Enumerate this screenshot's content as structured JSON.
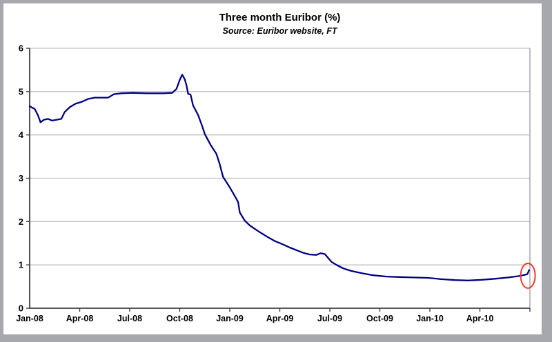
{
  "chart_data": {
    "type": "line",
    "title": "Three month Euribor (%)",
    "subtitle": "Source: Euribor website, FT",
    "ylim": [
      0,
      6
    ],
    "y_tick_labels": [
      "0",
      "1",
      "2",
      "3",
      "4",
      "5",
      "6"
    ],
    "x_range_months": [
      0,
      30
    ],
    "x_tick_labels": [
      "Jan-08",
      "Apr-08",
      "Jul-08",
      "Oct-08",
      "Jan-09",
      "Apr-09",
      "Jul-09",
      "Oct-09",
      "Jan-10",
      "Apr-10"
    ],
    "x_label_positions_months": [
      0,
      3,
      6,
      9,
      12,
      15,
      18,
      21,
      24,
      27
    ],
    "grid": "horizontal gridlines at each integer",
    "legend_position": "none",
    "colors": {
      "line": "#000082",
      "grid": "#c0c0c0",
      "axis": "#3f3f3f",
      "plot_right_border": "#9a9a9a",
      "annotation": "#f03b30",
      "outer_frame": "#a7a7ae",
      "background": "#ffffff"
    },
    "series": [
      {
        "name": "Three month Euribor (%)",
        "points_month_value": [
          [
            0.0,
            4.66
          ],
          [
            0.3,
            4.6
          ],
          [
            0.5,
            4.45
          ],
          [
            0.65,
            4.29
          ],
          [
            0.85,
            4.35
          ],
          [
            1.1,
            4.37
          ],
          [
            1.35,
            4.33
          ],
          [
            1.6,
            4.35
          ],
          [
            1.9,
            4.37
          ],
          [
            2.1,
            4.53
          ],
          [
            2.4,
            4.64
          ],
          [
            2.75,
            4.72
          ],
          [
            3.1,
            4.76
          ],
          [
            3.5,
            4.83
          ],
          [
            3.9,
            4.86
          ],
          [
            4.7,
            4.86
          ],
          [
            5.05,
            4.94
          ],
          [
            5.5,
            4.96
          ],
          [
            6.2,
            4.97
          ],
          [
            7.0,
            4.96
          ],
          [
            8.0,
            4.96
          ],
          [
            8.55,
            4.97
          ],
          [
            8.8,
            5.06
          ],
          [
            9.0,
            5.27
          ],
          [
            9.15,
            5.39
          ],
          [
            9.3,
            5.28
          ],
          [
            9.4,
            5.15
          ],
          [
            9.5,
            4.95
          ],
          [
            9.65,
            4.93
          ],
          [
            9.8,
            4.68
          ],
          [
            10.1,
            4.46
          ],
          [
            10.35,
            4.2
          ],
          [
            10.5,
            4.02
          ],
          [
            10.85,
            3.77
          ],
          [
            11.2,
            3.56
          ],
          [
            11.4,
            3.32
          ],
          [
            11.6,
            3.03
          ],
          [
            11.95,
            2.82
          ],
          [
            12.2,
            2.66
          ],
          [
            12.5,
            2.45
          ],
          [
            12.6,
            2.21
          ],
          [
            12.9,
            2.02
          ],
          [
            13.2,
            1.91
          ],
          [
            13.7,
            1.78
          ],
          [
            14.2,
            1.66
          ],
          [
            14.7,
            1.55
          ],
          [
            15.2,
            1.47
          ],
          [
            15.6,
            1.4
          ],
          [
            16.0,
            1.34
          ],
          [
            16.4,
            1.28
          ],
          [
            16.8,
            1.24
          ],
          [
            17.2,
            1.23
          ],
          [
            17.45,
            1.27
          ],
          [
            17.7,
            1.25
          ],
          [
            17.9,
            1.16
          ],
          [
            18.1,
            1.07
          ],
          [
            18.4,
            1.0
          ],
          [
            18.8,
            0.92
          ],
          [
            19.3,
            0.86
          ],
          [
            19.9,
            0.81
          ],
          [
            20.6,
            0.76
          ],
          [
            21.4,
            0.73
          ],
          [
            22.2,
            0.72
          ],
          [
            23.0,
            0.71
          ],
          [
            23.9,
            0.7
          ],
          [
            24.7,
            0.67
          ],
          [
            25.5,
            0.65
          ],
          [
            26.3,
            0.64
          ],
          [
            27.1,
            0.655
          ],
          [
            27.9,
            0.68
          ],
          [
            28.7,
            0.71
          ],
          [
            29.3,
            0.74
          ],
          [
            29.7,
            0.77
          ],
          [
            29.85,
            0.79
          ],
          [
            29.95,
            0.88
          ]
        ]
      }
    ],
    "annotation": {
      "shape": "ellipse",
      "highlights": "latest value at end of series",
      "center_month": 29.88,
      "center_value": 0.75
    }
  }
}
